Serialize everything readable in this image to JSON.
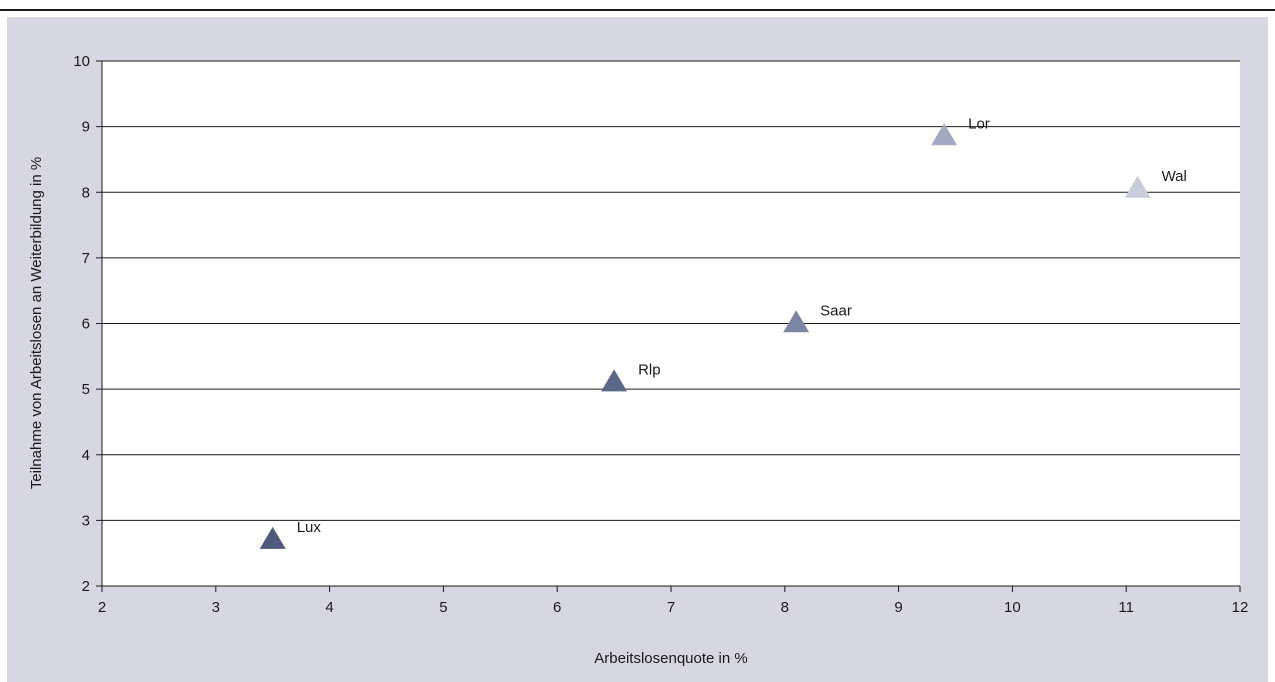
{
  "chart_data": {
    "type": "scatter",
    "title": "",
    "xlabel": "Arbeitslosenquote in %",
    "ylabel": "Teilnahme von Arbeitslosen an Weiterbildung in %",
    "xlim": [
      2,
      12
    ],
    "ylim": [
      2,
      10
    ],
    "x_ticks": [
      2,
      3,
      4,
      5,
      6,
      7,
      8,
      9,
      10,
      11,
      12
    ],
    "y_ticks": [
      2,
      3,
      4,
      5,
      6,
      7,
      8,
      9,
      10
    ],
    "grid": "horizontal",
    "marker": "triangle",
    "points": [
      {
        "label": "Lux",
        "x": 3.5,
        "y": 2.7,
        "color": "#4e5a7c"
      },
      {
        "label": "Rlp",
        "x": 6.5,
        "y": 5.1,
        "color": "#5c6888"
      },
      {
        "label": "Saar",
        "x": 8.1,
        "y": 6.0,
        "color": "#7c86a4"
      },
      {
        "label": "Lor",
        "x": 9.4,
        "y": 8.85,
        "color": "#a3a9c2"
      },
      {
        "label": "Wal",
        "x": 11.1,
        "y": 8.05,
        "color": "#c9cddb"
      }
    ]
  }
}
